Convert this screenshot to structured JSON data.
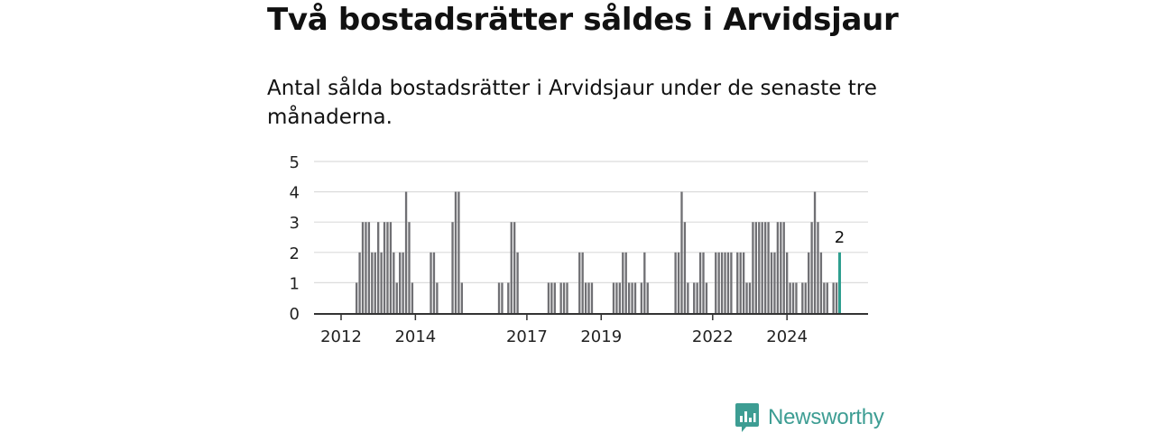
{
  "title": "Två bostadsrätter såldes i Arvidsjaur",
  "subtitle": "Antal sålda bostadsrätter i Arvidsjaur under de senaste tre månaderna.",
  "brand": {
    "name": "Newsworthy",
    "icon": "newsworthy-logo-icon",
    "color": "#3d9d93"
  },
  "chart_data": {
    "type": "bar",
    "x_start": "2011-11",
    "x_end": "2025-06",
    "x_tick_labels": [
      "2012",
      "2014",
      "2017",
      "2019",
      "2022",
      "2024"
    ],
    "y_ticks": [
      0,
      1,
      2,
      3,
      4,
      5
    ],
    "ylim": [
      0,
      5
    ],
    "grid": true,
    "legend": "none",
    "bar_color": "#707074",
    "highlight_color": "#2e9e8f",
    "series": [
      {
        "x": "2012-06",
        "y": 1
      },
      {
        "x": "2012-07",
        "y": 2
      },
      {
        "x": "2012-08",
        "y": 3
      },
      {
        "x": "2012-09",
        "y": 3
      },
      {
        "x": "2012-10",
        "y": 3
      },
      {
        "x": "2012-11",
        "y": 2
      },
      {
        "x": "2012-12",
        "y": 2
      },
      {
        "x": "2013-01",
        "y": 3
      },
      {
        "x": "2013-02",
        "y": 2
      },
      {
        "x": "2013-03",
        "y": 3
      },
      {
        "x": "2013-04",
        "y": 3
      },
      {
        "x": "2013-05",
        "y": 3
      },
      {
        "x": "2013-06",
        "y": 2
      },
      {
        "x": "2013-07",
        "y": 1
      },
      {
        "x": "2013-08",
        "y": 2
      },
      {
        "x": "2013-09",
        "y": 2
      },
      {
        "x": "2013-10",
        "y": 4
      },
      {
        "x": "2013-11",
        "y": 3
      },
      {
        "x": "2013-12",
        "y": 1
      },
      {
        "x": "2014-06",
        "y": 2
      },
      {
        "x": "2014-07",
        "y": 2
      },
      {
        "x": "2014-08",
        "y": 1
      },
      {
        "x": "2015-01",
        "y": 3
      },
      {
        "x": "2015-02",
        "y": 4
      },
      {
        "x": "2015-03",
        "y": 4
      },
      {
        "x": "2015-04",
        "y": 1
      },
      {
        "x": "2016-04",
        "y": 1
      },
      {
        "x": "2016-05",
        "y": 1
      },
      {
        "x": "2016-07",
        "y": 1
      },
      {
        "x": "2016-08",
        "y": 3
      },
      {
        "x": "2016-09",
        "y": 3
      },
      {
        "x": "2016-10",
        "y": 2
      },
      {
        "x": "2017-08",
        "y": 1
      },
      {
        "x": "2017-09",
        "y": 1
      },
      {
        "x": "2017-10",
        "y": 1
      },
      {
        "x": "2017-12",
        "y": 1
      },
      {
        "x": "2018-01",
        "y": 1
      },
      {
        "x": "2018-02",
        "y": 1
      },
      {
        "x": "2018-06",
        "y": 2
      },
      {
        "x": "2018-07",
        "y": 2
      },
      {
        "x": "2018-08",
        "y": 1
      },
      {
        "x": "2018-09",
        "y": 1
      },
      {
        "x": "2018-10",
        "y": 1
      },
      {
        "x": "2019-05",
        "y": 1
      },
      {
        "x": "2019-06",
        "y": 1
      },
      {
        "x": "2019-07",
        "y": 1
      },
      {
        "x": "2019-08",
        "y": 2
      },
      {
        "x": "2019-09",
        "y": 2
      },
      {
        "x": "2019-10",
        "y": 1
      },
      {
        "x": "2019-11",
        "y": 1
      },
      {
        "x": "2019-12",
        "y": 1
      },
      {
        "x": "2020-02",
        "y": 1
      },
      {
        "x": "2020-03",
        "y": 2
      },
      {
        "x": "2020-04",
        "y": 1
      },
      {
        "x": "2021-01",
        "y": 2
      },
      {
        "x": "2021-02",
        "y": 2
      },
      {
        "x": "2021-03",
        "y": 4
      },
      {
        "x": "2021-04",
        "y": 3
      },
      {
        "x": "2021-05",
        "y": 1
      },
      {
        "x": "2021-07",
        "y": 1
      },
      {
        "x": "2021-08",
        "y": 1
      },
      {
        "x": "2021-09",
        "y": 2
      },
      {
        "x": "2021-10",
        "y": 2
      },
      {
        "x": "2021-11",
        "y": 1
      },
      {
        "x": "2022-02",
        "y": 2
      },
      {
        "x": "2022-03",
        "y": 2
      },
      {
        "x": "2022-04",
        "y": 2
      },
      {
        "x": "2022-05",
        "y": 2
      },
      {
        "x": "2022-06",
        "y": 2
      },
      {
        "x": "2022-07",
        "y": 2
      },
      {
        "x": "2022-09",
        "y": 2
      },
      {
        "x": "2022-10",
        "y": 2
      },
      {
        "x": "2022-11",
        "y": 2
      },
      {
        "x": "2022-12",
        "y": 1
      },
      {
        "x": "2023-01",
        "y": 1
      },
      {
        "x": "2023-02",
        "y": 3
      },
      {
        "x": "2023-03",
        "y": 3
      },
      {
        "x": "2023-04",
        "y": 3
      },
      {
        "x": "2023-05",
        "y": 3
      },
      {
        "x": "2023-06",
        "y": 3
      },
      {
        "x": "2023-07",
        "y": 3
      },
      {
        "x": "2023-08",
        "y": 2
      },
      {
        "x": "2023-09",
        "y": 2
      },
      {
        "x": "2023-10",
        "y": 3
      },
      {
        "x": "2023-11",
        "y": 3
      },
      {
        "x": "2023-12",
        "y": 3
      },
      {
        "x": "2024-01",
        "y": 2
      },
      {
        "x": "2024-02",
        "y": 1
      },
      {
        "x": "2024-03",
        "y": 1
      },
      {
        "x": "2024-04",
        "y": 1
      },
      {
        "x": "2024-06",
        "y": 1
      },
      {
        "x": "2024-07",
        "y": 1
      },
      {
        "x": "2024-08",
        "y": 2
      },
      {
        "x": "2024-09",
        "y": 3
      },
      {
        "x": "2024-10",
        "y": 4
      },
      {
        "x": "2024-11",
        "y": 3
      },
      {
        "x": "2024-12",
        "y": 2
      },
      {
        "x": "2025-01",
        "y": 1
      },
      {
        "x": "2025-02",
        "y": 1
      },
      {
        "x": "2025-04",
        "y": 1
      },
      {
        "x": "2025-05",
        "y": 1
      },
      {
        "x": "2025-06",
        "y": 2,
        "highlight": true,
        "label": "2"
      }
    ]
  }
}
